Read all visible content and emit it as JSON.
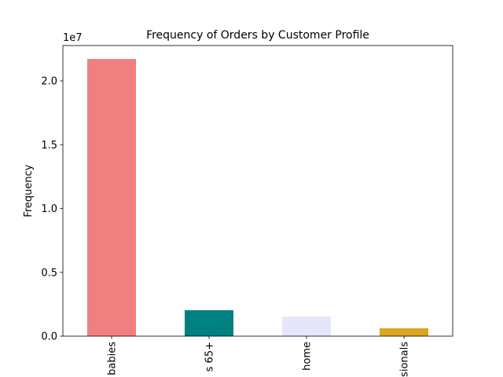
{
  "chart_data": {
    "type": "bar",
    "title": "Frequency of Orders by Customer Profile",
    "ylabel": "Frequency",
    "y_offset_label": "1e7",
    "categories": [
      "babies",
      "s 65+",
      "home",
      "sionals"
    ],
    "values": [
      21720000,
      2030000,
      1540000,
      615000
    ],
    "colors": [
      "#f08080",
      "#008080",
      "#e6e6fa",
      "#daa520"
    ],
    "ylim": [
      0,
      22770000
    ],
    "yticks": [
      {
        "value": 0,
        "label": "0.0"
      },
      {
        "value": 5000000,
        "label": "0.5"
      },
      {
        "value": 10000000,
        "label": "1.0"
      },
      {
        "value": 15000000,
        "label": "1.5"
      },
      {
        "value": 20000000,
        "label": "2.0"
      }
    ]
  }
}
